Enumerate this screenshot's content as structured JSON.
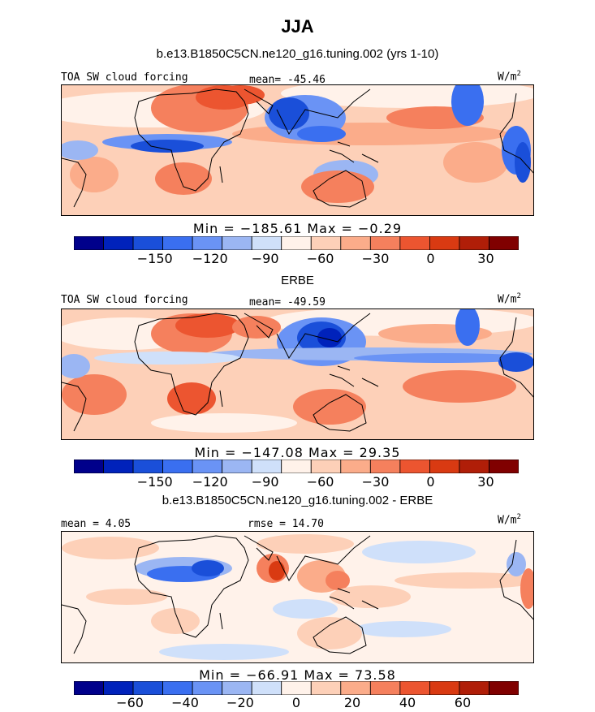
{
  "title": "JJA",
  "colors": [
    "#00008b",
    "#0022bb",
    "#1a4fd9",
    "#3a6ff0",
    "#6a93f5",
    "#9bb6f3",
    "#cfe0fa",
    "#fff2ea",
    "#fdd0b8",
    "#fbac8a",
    "#f5805d",
    "#ec5530",
    "#d93a12",
    "#b01e08",
    "#800000"
  ],
  "panels": [
    {
      "id": "model",
      "subtitle": "b.e13.B1850C5CN.ne120_g16.tuning.002 (yrs 1-10)",
      "left_label": "TOA SW cloud forcing",
      "center_label": "mean= -45.46",
      "units": "W/m",
      "units_sup": "2",
      "min_max": "Min = −185.61 Max = −0.29",
      "colorbar_ticks": [
        "−150",
        "−120",
        "−90",
        "−60",
        "−30",
        "0",
        "30"
      ]
    },
    {
      "id": "obs",
      "subtitle": "ERBE",
      "left_label": "TOA SW cloud forcing",
      "center_label": "mean= -49.59",
      "units": "W/m",
      "units_sup": "2",
      "min_max": "Min = −147.08 Max =  29.35",
      "colorbar_ticks": [
        "−150",
        "−120",
        "−90",
        "−60",
        "−30",
        "0",
        "30"
      ]
    },
    {
      "id": "diff",
      "subtitle": "b.e13.B1850C5CN.ne120_g16.tuning.002 - ERBE",
      "left_label": "mean =   4.05",
      "center_label": "rmse =  14.70",
      "units": "W/m",
      "units_sup": "2",
      "min_max": "Min = −66.91 Max =  73.58",
      "colorbar_ticks": [
        "−60",
        "−40",
        "−20",
        "0",
        "20",
        "40",
        "60"
      ]
    }
  ]
}
